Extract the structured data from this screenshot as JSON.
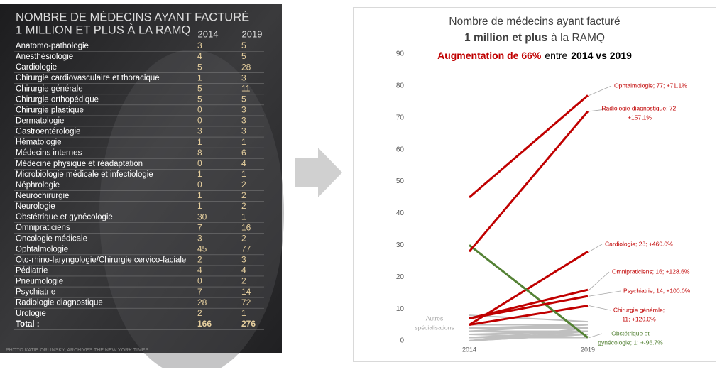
{
  "table": {
    "title": [
      "NOMBRE DE MÉDECINS AYANT FACTURÉ",
      "1 MILLION ET PLUS À LA RAMQ"
    ],
    "columns": [
      "2014",
      "2019"
    ],
    "rows": [
      [
        "Anatomo-pathologie",
        3,
        5
      ],
      [
        "Anesthésiologie",
        4,
        5
      ],
      [
        "Cardiologie",
        5,
        28
      ],
      [
        "Chirurgie cardiovasculaire et thoracique",
        1,
        3
      ],
      [
        "Chirurgie générale",
        5,
        11
      ],
      [
        "Chirurgie orthopédique",
        5,
        5
      ],
      [
        "Chirurgie plastique",
        0,
        3
      ],
      [
        "Dermatologie",
        0,
        3
      ],
      [
        "Gastroentérologie",
        3,
        3
      ],
      [
        "Hématologie",
        1,
        1
      ],
      [
        "Médecins internes",
        8,
        6
      ],
      [
        "Médecine physique et réadaptation",
        0,
        4
      ],
      [
        "Microbiologie médicale et infectiologie",
        1,
        1
      ],
      [
        "Néphrologie",
        0,
        2
      ],
      [
        "Neurochirurgie",
        1,
        2
      ],
      [
        "Neurologie",
        1,
        2
      ],
      [
        "Obstétrique et gynécologie",
        30,
        1
      ],
      [
        "Omnipraticiens",
        7,
        16
      ],
      [
        "Oncologie médicale",
        3,
        2
      ],
      [
        "Ophtalmologie",
        45,
        77
      ],
      [
        "Oto-rhino-laryngologie/Chirurgie cervico-faciale",
        2,
        3
      ],
      [
        "Pédiatrie",
        4,
        4
      ],
      [
        "Pneumologie",
        0,
        2
      ],
      [
        "Psychiatrie",
        7,
        14
      ],
      [
        "Radiologie diagnostique",
        28,
        72
      ],
      [
        "Urologie",
        2,
        1
      ]
    ],
    "total": [
      "Total :",
      166,
      276
    ],
    "credit": "PHOTO KATIE ORLINSKY, ARCHIVES THE NEW YORK TIMES"
  },
  "chart_data": {
    "type": "slope",
    "title": {
      "line1": "Nombre de médecins ayant facturé",
      "line2_bold": "1 million et plus",
      "line2_rest": "à la RAMQ"
    },
    "subtitle": {
      "highlight": "Augmentation de 66%",
      "middle": "entre",
      "bold": "2014 vs 2019"
    },
    "x": [
      "2014",
      "2019"
    ],
    "ylim": [
      0,
      90
    ],
    "yticks": [
      0,
      10,
      20,
      30,
      40,
      50,
      60,
      70,
      80,
      90
    ],
    "other_label": [
      "Autres",
      "spécialisations"
    ],
    "series": [
      {
        "color": "#bfbfbf",
        "values": [
          3,
          5
        ]
      },
      {
        "color": "#bfbfbf",
        "values": [
          4,
          5
        ]
      },
      {
        "color": "#c00000",
        "values": [
          5,
          28
        ],
        "label": [
          "Cardiologie; 28; +460.0%"
        ]
      },
      {
        "color": "#bfbfbf",
        "values": [
          1,
          3
        ]
      },
      {
        "color": "#c00000",
        "values": [
          5,
          11
        ],
        "label": [
          "Chirurgie générale;",
          "11; +120.0%"
        ]
      },
      {
        "color": "#bfbfbf",
        "values": [
          5,
          5
        ]
      },
      {
        "color": "#bfbfbf",
        "values": [
          0,
          3
        ]
      },
      {
        "color": "#bfbfbf",
        "values": [
          0,
          3
        ]
      },
      {
        "color": "#bfbfbf",
        "values": [
          3,
          3
        ]
      },
      {
        "color": "#bfbfbf",
        "values": [
          1,
          1
        ]
      },
      {
        "color": "#bfbfbf",
        "values": [
          8,
          6
        ]
      },
      {
        "color": "#bfbfbf",
        "values": [
          0,
          4
        ]
      },
      {
        "color": "#bfbfbf",
        "values": [
          1,
          1
        ]
      },
      {
        "color": "#bfbfbf",
        "values": [
          0,
          2
        ]
      },
      {
        "color": "#bfbfbf",
        "values": [
          1,
          2
        ]
      },
      {
        "color": "#bfbfbf",
        "values": [
          1,
          2
        ]
      },
      {
        "color": "#548235",
        "values": [
          30,
          1
        ],
        "label": [
          "Obstétrique et",
          "gynécologie; 1; +-96.7%"
        ]
      },
      {
        "color": "#c00000",
        "values": [
          7,
          16
        ],
        "label": [
          "Omnipraticiens; 16; +128.6%"
        ]
      },
      {
        "color": "#bfbfbf",
        "values": [
          3,
          2
        ]
      },
      {
        "color": "#c00000",
        "values": [
          45,
          77
        ],
        "label": [
          "Ophtalmologie; 77; +71.1%"
        ]
      },
      {
        "color": "#bfbfbf",
        "values": [
          2,
          3
        ]
      },
      {
        "color": "#bfbfbf",
        "values": [
          4,
          4
        ]
      },
      {
        "color": "#bfbfbf",
        "values": [
          0,
          2
        ]
      },
      {
        "color": "#c00000",
        "values": [
          7,
          14
        ],
        "label": [
          "Psychiatrie; 14; +100.0%"
        ]
      },
      {
        "color": "#c00000",
        "values": [
          28,
          72
        ],
        "label": [
          "Radiologie diagnostique; 72;",
          "+157.1%"
        ]
      },
      {
        "color": "#bfbfbf",
        "values": [
          2,
          1
        ]
      }
    ]
  }
}
